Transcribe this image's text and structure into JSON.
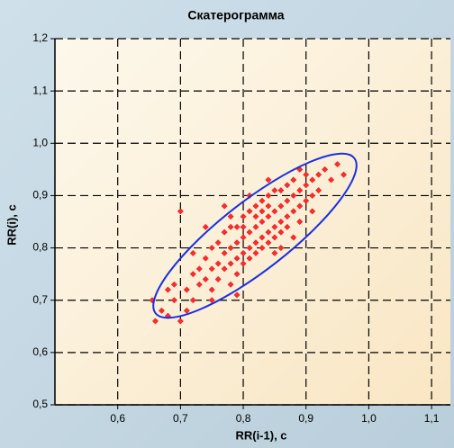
{
  "chart_data": {
    "type": "scatter",
    "title": "Скатерограмма",
    "x_label": "RR(i-1), с",
    "y_label": "RR(i), с",
    "color": "#ff2a2a",
    "x": [
      0.66,
      0.655,
      0.67,
      0.68,
      0.69,
      0.7,
      0.69,
      0.71,
      0.7,
      0.72,
      0.72,
      0.73,
      0.73,
      0.74,
      0.74,
      0.75,
      0.75,
      0.75,
      0.76,
      0.76,
      0.76,
      0.77,
      0.77,
      0.77,
      0.78,
      0.78,
      0.78,
      0.78,
      0.79,
      0.79,
      0.79,
      0.79,
      0.8,
      0.8,
      0.8,
      0.8,
      0.8,
      0.81,
      0.81,
      0.81,
      0.81,
      0.82,
      0.82,
      0.82,
      0.82,
      0.82,
      0.83,
      0.83,
      0.83,
      0.83,
      0.83,
      0.84,
      0.84,
      0.84,
      0.84,
      0.84,
      0.85,
      0.85,
      0.85,
      0.85,
      0.86,
      0.86,
      0.86,
      0.86,
      0.87,
      0.87,
      0.87,
      0.87,
      0.88,
      0.88,
      0.88,
      0.89,
      0.89,
      0.89,
      0.9,
      0.9,
      0.9,
      0.91,
      0.91,
      0.92,
      0.92,
      0.93,
      0.94,
      0.95,
      0.96,
      0.75,
      0.78,
      0.85,
      0.88,
      0.74,
      0.77,
      0.84,
      0.91,
      0.68,
      0.71,
      0.79,
      0.86,
      0.72,
      0.81,
      0.89
    ],
    "y": [
      0.66,
      0.7,
      0.68,
      0.67,
      0.7,
      0.66,
      0.73,
      0.72,
      0.87,
      0.75,
      0.7,
      0.76,
      0.73,
      0.78,
      0.74,
      0.76,
      0.8,
      0.72,
      0.77,
      0.81,
      0.74,
      0.79,
      0.83,
      0.76,
      0.8,
      0.84,
      0.77,
      0.86,
      0.81,
      0.78,
      0.84,
      0.75,
      0.82,
      0.79,
      0.86,
      0.77,
      0.84,
      0.83,
      0.8,
      0.87,
      0.78,
      0.84,
      0.81,
      0.88,
      0.79,
      0.86,
      0.85,
      0.82,
      0.89,
      0.8,
      0.87,
      0.86,
      0.83,
      0.9,
      0.81,
      0.88,
      0.87,
      0.84,
      0.91,
      0.82,
      0.88,
      0.85,
      0.91,
      0.83,
      0.89,
      0.86,
      0.92,
      0.84,
      0.9,
      0.87,
      0.93,
      0.91,
      0.88,
      0.85,
      0.92,
      0.89,
      0.94,
      0.93,
      0.9,
      0.94,
      0.91,
      0.95,
      0.93,
      0.96,
      0.94,
      0.7,
      0.73,
      0.79,
      0.82,
      0.84,
      0.88,
      0.93,
      0.87,
      0.72,
      0.68,
      0.71,
      0.8,
      0.79,
      0.9,
      0.95
    ],
    "xlim": [
      0.5,
      1.13
    ],
    "ylim": [
      0.5,
      1.2
    ],
    "xticks": [
      {
        "value": 0.6,
        "label": "0,6"
      },
      {
        "value": 0.7,
        "label": "0,7"
      },
      {
        "value": 0.8,
        "label": "0,8"
      },
      {
        "value": 0.9,
        "label": "0,9"
      },
      {
        "value": 1.0,
        "label": "1,0"
      },
      {
        "value": 1.1,
        "label": "1,1"
      }
    ],
    "yticks": [
      {
        "value": 0.5,
        "label": "0,5"
      },
      {
        "value": 0.6,
        "label": "0,6"
      },
      {
        "value": 0.7,
        "label": "0,7"
      },
      {
        "value": 0.8,
        "label": "0,8"
      },
      {
        "value": 0.9,
        "label": "0,9"
      },
      {
        "value": 1.0,
        "label": "1,0"
      },
      {
        "value": 1.1,
        "label": "1,1"
      },
      {
        "value": 1.2,
        "label": "1,2"
      }
    ],
    "grid": true
  }
}
